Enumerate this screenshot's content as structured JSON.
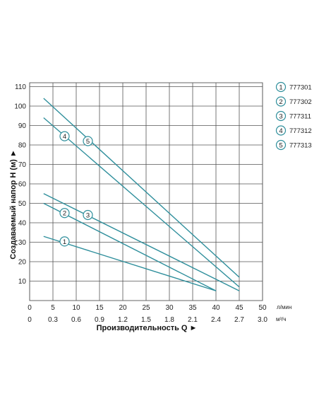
{
  "chart_data": {
    "type": "line",
    "x_flow_lpm_ticks": [
      "0",
      "5",
      "10",
      "15",
      "20",
      "25",
      "30",
      "35",
      "40",
      "45",
      "50"
    ],
    "x_flow_m3h_ticks": [
      "0",
      "0.3",
      "0.6",
      "0.9",
      "1.2",
      "1.5",
      "1.8",
      "2.1",
      "2.4",
      "2.7",
      "3.0"
    ],
    "y_ticks": [
      "10",
      "20",
      "30",
      "40",
      "50",
      "60",
      "70",
      "80",
      "90",
      "100",
      "110"
    ],
    "xlim": [
      0,
      50
    ],
    "ylim": [
      0,
      112
    ],
    "xlabel": "Производительность Q ►",
    "ylabel": "Создаваемый напор H (м) ►",
    "x_unit_1": "л/мин",
    "x_unit_2": "м³/ч",
    "grid": true,
    "line_color": "#2f8f9c",
    "legend_position": "right",
    "series": [
      {
        "name": "777301",
        "marker": "1",
        "points": [
          [
            3,
            33
          ],
          [
            40,
            5
          ]
        ],
        "marker_at": [
          7.5,
          30.4
        ]
      },
      {
        "name": "777302",
        "marker": "2",
        "points": [
          [
            3,
            50
          ],
          [
            40,
            5
          ]
        ],
        "marker_at": [
          7.5,
          45
        ]
      },
      {
        "name": "777311",
        "marker": "3",
        "points": [
          [
            3,
            55
          ],
          [
            45,
            5
          ]
        ],
        "marker_at": [
          12.5,
          44
        ]
      },
      {
        "name": "777312",
        "marker": "4",
        "points": [
          [
            3,
            94
          ],
          [
            45,
            7
          ]
        ],
        "marker_at": [
          7.5,
          84.5
        ]
      },
      {
        "name": "777313",
        "marker": "5",
        "points": [
          [
            3,
            104
          ],
          [
            45,
            12
          ]
        ],
        "marker_at": [
          12.5,
          82
        ]
      }
    ]
  }
}
